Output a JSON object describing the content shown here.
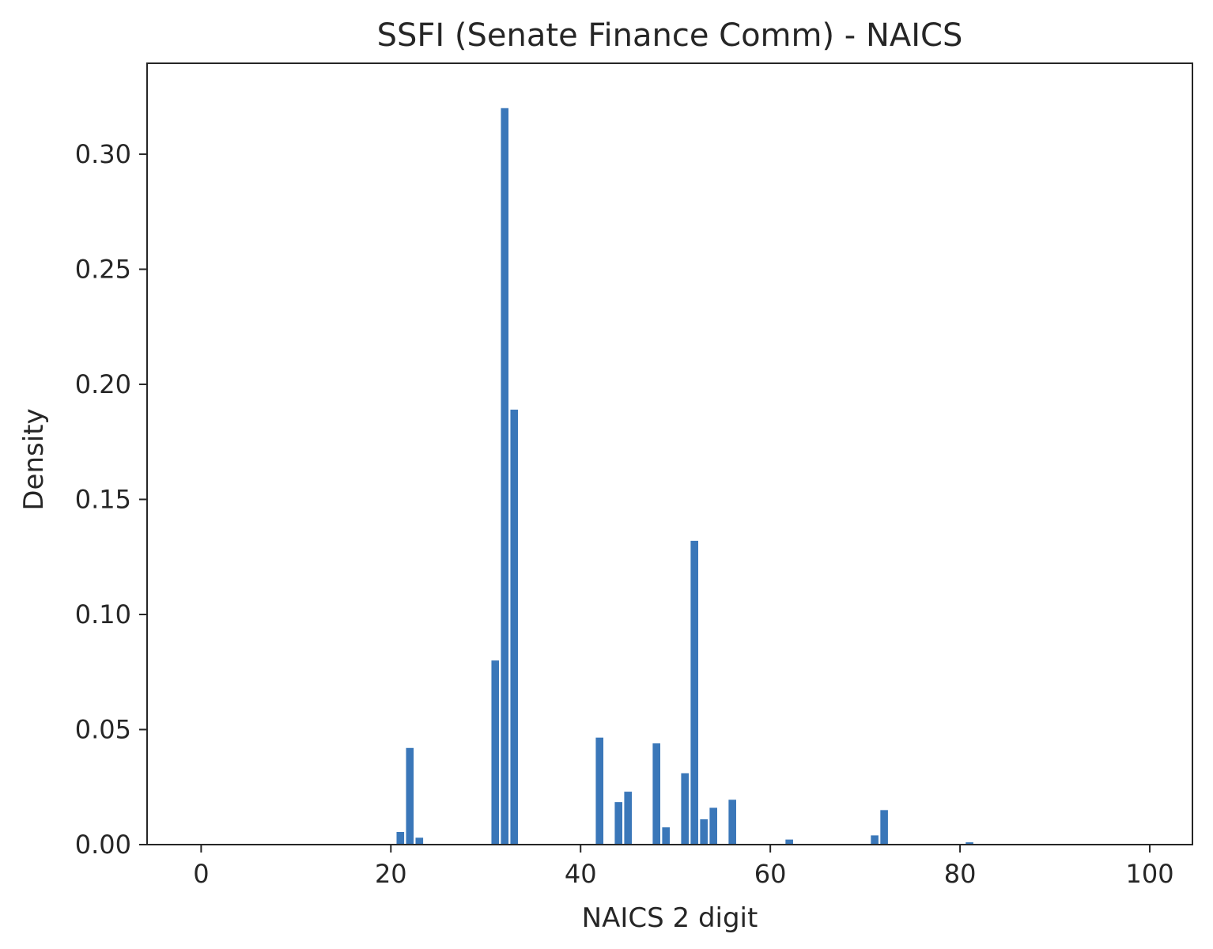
{
  "chart_data": {
    "type": "bar",
    "title": "SSFI (Senate Finance Comm) - NAICS",
    "xlabel": "NAICS 2 digit",
    "ylabel": "Density",
    "xlim": [
      -5.7,
      104.5
    ],
    "ylim": [
      0,
      0.3395
    ],
    "xticks": [
      0,
      20,
      40,
      60,
      80,
      100
    ],
    "xtick_labels": [
      "0",
      "20",
      "40",
      "60",
      "80",
      "100"
    ],
    "yticks": [
      0.0,
      0.05,
      0.1,
      0.15,
      0.2,
      0.25,
      0.3
    ],
    "ytick_labels": [
      "0.00",
      "0.05",
      "0.10",
      "0.15",
      "0.20",
      "0.25",
      "0.30"
    ],
    "grid": false,
    "color": "#3a77b9",
    "x": [
      21,
      22,
      23,
      31,
      32,
      33,
      42,
      44,
      45,
      48,
      49,
      51,
      52,
      53,
      54,
      56,
      62,
      71,
      72,
      81
    ],
    "values": [
      0.0055,
      0.042,
      0.003,
      0.08,
      0.32,
      0.189,
      0.0465,
      0.0185,
      0.023,
      0.044,
      0.0075,
      0.031,
      0.132,
      0.011,
      0.016,
      0.0195,
      0.0022,
      0.004,
      0.015,
      0.001
    ]
  }
}
